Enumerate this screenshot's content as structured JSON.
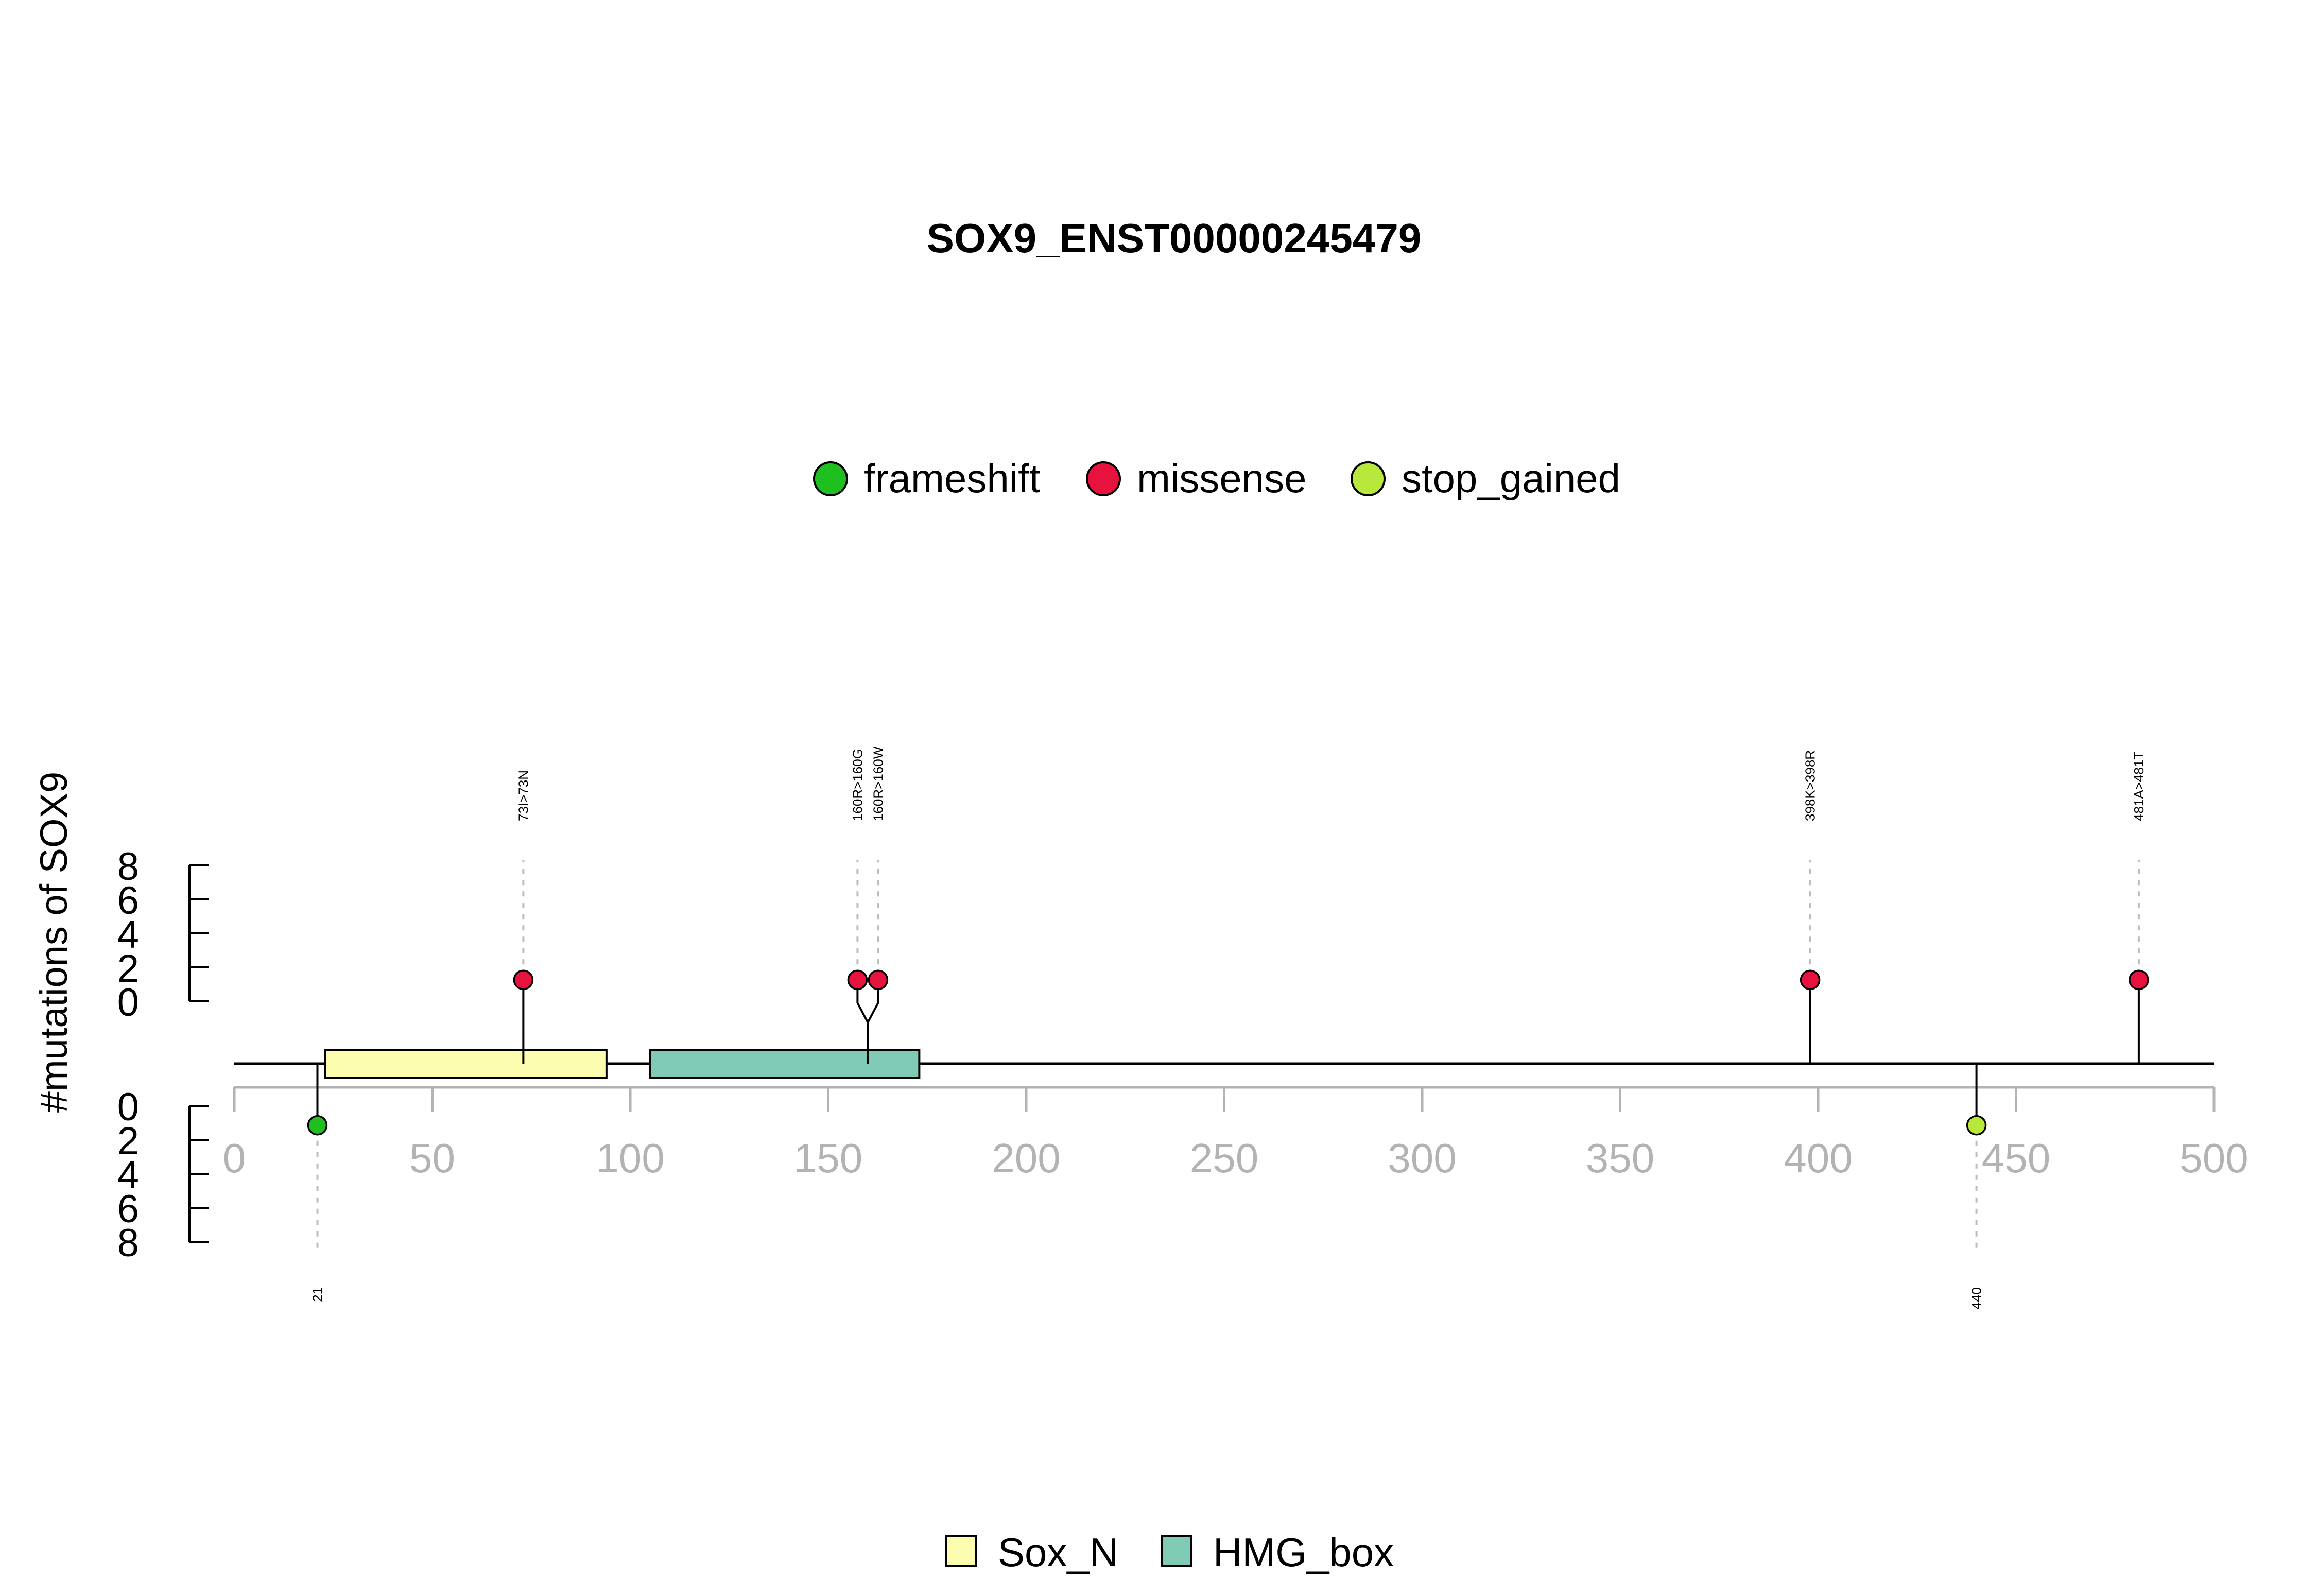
{
  "chart_data": {
    "type": "lollipop",
    "title": "SOX9_ENST00000245479",
    "ylabel": "#mutations of SOX9",
    "xlim": [
      0,
      500
    ],
    "x_ticks": [
      0,
      50,
      100,
      150,
      200,
      250,
      300,
      350,
      400,
      450,
      500
    ],
    "y_ticks": [
      0,
      2,
      4,
      6,
      8
    ],
    "protein_length": 500,
    "mutation_legend": [
      {
        "label": "frameshift",
        "color": "#1fbf1f"
      },
      {
        "label": "missense",
        "color": "#e8123f"
      },
      {
        "label": "stop_gained",
        "color": "#b8e83c"
      }
    ],
    "domain_legend": [
      {
        "label": "Sox_N",
        "color": "#fdfdaf"
      },
      {
        "label": "HMG_box",
        "color": "#7fcbb6"
      }
    ],
    "domains": [
      {
        "name": "Sox_N",
        "start": 23,
        "end": 94,
        "color": "#fdfdaf"
      },
      {
        "name": "HMG_box",
        "start": 105,
        "end": 173,
        "color": "#7fcbb6"
      }
    ],
    "mutations": [
      {
        "pos": 21,
        "label": "21",
        "type": "frameshift",
        "count": 1,
        "side": "bottom"
      },
      {
        "pos": 73,
        "label": "73I>73N",
        "type": "missense",
        "count": 1,
        "side": "top"
      },
      {
        "pos": 160,
        "label": "160R>160G",
        "type": "missense",
        "count": 1,
        "side": "top"
      },
      {
        "pos": 160,
        "label": "160R>160W",
        "type": "missense",
        "count": 1,
        "side": "top"
      },
      {
        "pos": 398,
        "label": "398K>398R",
        "type": "missense",
        "count": 1,
        "side": "top"
      },
      {
        "pos": 440,
        "label": "440",
        "type": "stop_gained",
        "count": 1,
        "side": "bottom"
      },
      {
        "pos": 481,
        "label": "481A>481T",
        "type": "missense",
        "count": 1,
        "side": "top"
      }
    ]
  }
}
